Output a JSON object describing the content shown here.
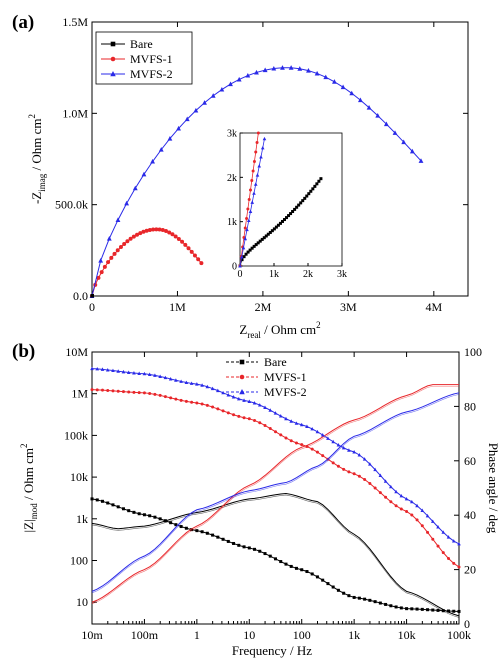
{
  "colors": {
    "bare": "#000000",
    "mvfs1": "#e8262a",
    "mvfs2": "#2a2ae8",
    "axis": "#000000"
  },
  "chart_data": [
    {
      "id": "a",
      "type": "scatter",
      "panel_label": "(a)",
      "xlabel": {
        "main": "Z",
        "sub": "real",
        "rest": " / Ohm cm",
        "sup": "2"
      },
      "ylabel": {
        "main": "-Z",
        "sub": "imag",
        "rest": " / Ohm cm",
        "sup": "2"
      },
      "xlim": [
        0,
        4400000
      ],
      "ylim": [
        0,
        1500000
      ],
      "xticks": [
        {
          "v": 0,
          "label": "0"
        },
        {
          "v": 1000000,
          "label": "1M"
        },
        {
          "v": 2000000,
          "label": "2M"
        },
        {
          "v": 3000000,
          "label": "3M"
        },
        {
          "v": 4000000,
          "label": "4M"
        }
      ],
      "yticks": [
        {
          "v": 0,
          "label": "0.0"
        },
        {
          "v": 500000,
          "label": "500.0k"
        },
        {
          "v": 1000000,
          "label": "1.0M"
        },
        {
          "v": 1500000,
          "label": "1.5M"
        }
      ],
      "legend_position": "top-left",
      "series": [
        {
          "name": "Bare",
          "color_key": "bare",
          "marker": "square",
          "arc": {
            "r": [
              0,
              3000,
              4200
            ],
            "peak_r": 2300,
            "peak_i": 1950,
            "n": 30
          }
        },
        {
          "name": "MVFS-1",
          "color_key": "mvfs1",
          "marker": "circle",
          "arc": {
            "r": [
              0,
              760000,
              1280000
            ],
            "peak_r": 760000,
            "peak_i": 365000,
            "n": 34,
            "end_i": 180000
          }
        },
        {
          "name": "MVFS-2",
          "color_key": "mvfs2",
          "marker": "triangle",
          "arc": {
            "r": [
              0,
              2280000,
              3850000
            ],
            "peak_r": 2280000,
            "peak_i": 1250000,
            "n": 38,
            "end_i": 740000
          }
        }
      ],
      "inset": {
        "xlim": [
          0,
          3000
        ],
        "ylim": [
          0,
          3000
        ],
        "xticks": [
          {
            "v": 0,
            "label": "0"
          },
          {
            "v": 1000,
            "label": "1k"
          },
          {
            "v": 2000,
            "label": "2k"
          },
          {
            "v": 3000,
            "label": "3k"
          }
        ],
        "yticks": [
          {
            "v": 0,
            "label": "0"
          },
          {
            "v": 1000,
            "label": "1k"
          },
          {
            "v": 2000,
            "label": "2k"
          },
          {
            "v": 3000,
            "label": "3k"
          }
        ],
        "series": [
          {
            "name": "Bare",
            "color_key": "bare",
            "marker": "square",
            "x_end": 2380,
            "y_end": 1970
          },
          {
            "name": "MVFS-1",
            "color_key": "mvfs1",
            "marker": "circle",
            "x_end": 540,
            "y_end": 3000
          },
          {
            "name": "MVFS-2",
            "color_key": "mvfs2",
            "marker": "triangle",
            "x_end": 720,
            "y_end": 2870
          }
        ]
      }
    },
    {
      "id": "b",
      "type": "line",
      "panel_label": "(b)",
      "xlabel": {
        "main": "Frequency  / Hz"
      },
      "ylabel": {
        "main": "|Z|",
        "sub": "mod",
        "rest": " / Ohm cm",
        "sup": "2"
      },
      "y2label": {
        "main": "Phase angle / deg"
      },
      "xscale": "log",
      "yscale": "log",
      "xlim": [
        0.01,
        100000
      ],
      "ylim": [
        3,
        10000000
      ],
      "y2lim": [
        0,
        100
      ],
      "xticks": [
        {
          "v": 0.01,
          "label": "10m"
        },
        {
          "v": 0.1,
          "label": "100m"
        },
        {
          "v": 1,
          "label": "1"
        },
        {
          "v": 10,
          "label": "10"
        },
        {
          "v": 100,
          "label": "100"
        },
        {
          "v": 1000,
          "label": "1k"
        },
        {
          "v": 10000,
          "label": "10k"
        },
        {
          "v": 100000,
          "label": "100k"
        }
      ],
      "yticks": [
        {
          "v": 10,
          "label": "10"
        },
        {
          "v": 100,
          "label": "100"
        },
        {
          "v": 1000,
          "label": "1k"
        },
        {
          "v": 10000,
          "label": "10k"
        },
        {
          "v": 100000,
          "label": "100k"
        },
        {
          "v": 1000000,
          "label": "1M"
        },
        {
          "v": 10000000,
          "label": "10M"
        }
      ],
      "y2ticks": [
        {
          "v": 0,
          "label": "0"
        },
        {
          "v": 20,
          "label": "20"
        },
        {
          "v": 40,
          "label": "40"
        },
        {
          "v": 60,
          "label": "60"
        },
        {
          "v": 80,
          "label": "80"
        },
        {
          "v": 100,
          "label": "100"
        }
      ],
      "legend_position": "top-center",
      "series": [
        {
          "name": "Bare",
          "color_key": "bare",
          "marker": "square",
          "modulus": [
            [
              0.01,
              3000
            ],
            [
              0.1,
              1250
            ],
            [
              1,
              520
            ],
            [
              10,
              200
            ],
            [
              100,
              60
            ],
            [
              1000,
              13
            ],
            [
              10000,
              7
            ],
            [
              100000,
              6
            ]
          ],
          "phase": [
            [
              0.01,
              37
            ],
            [
              0.03,
              35
            ],
            [
              0.1,
              36
            ],
            [
              1,
              41
            ],
            [
              10,
              46
            ],
            [
              50,
              48
            ],
            [
              200,
              45
            ],
            [
              1000,
              33
            ],
            [
              10000,
              12
            ],
            [
              100000,
              3
            ]
          ]
        },
        {
          "name": "MVFS-1",
          "color_key": "mvfs1",
          "marker": "circle",
          "modulus": [
            [
              0.01,
              1250000
            ],
            [
              0.1,
              1050000
            ],
            [
              1,
              600000
            ],
            [
              10,
              250000
            ],
            [
              100,
              60000
            ],
            [
              1000,
              12000
            ],
            [
              10000,
              1500
            ],
            [
              100000,
              70
            ]
          ],
          "phase": [
            [
              0.01,
              8
            ],
            [
              0.1,
              20
            ],
            [
              1,
              36
            ],
            [
              10,
              51
            ],
            [
              100,
              65
            ],
            [
              1000,
              75
            ],
            [
              10000,
              84
            ],
            [
              30000,
              88
            ],
            [
              100000,
              88
            ]
          ]
        },
        {
          "name": "MVFS-2",
          "color_key": "mvfs2",
          "marker": "triangle",
          "modulus": [
            [
              0.01,
              4000000
            ],
            [
              0.1,
              3000000
            ],
            [
              1,
              1700000
            ],
            [
              10,
              650000
            ],
            [
              100,
              180000
            ],
            [
              1000,
              40000
            ],
            [
              10000,
              3000
            ],
            [
              100000,
              250
            ]
          ],
          "phase": [
            [
              0.01,
              12
            ],
            [
              0.1,
              25
            ],
            [
              1,
              42
            ],
            [
              10,
              49
            ],
            [
              50,
              52
            ],
            [
              200,
              58
            ],
            [
              1000,
              69
            ],
            [
              10000,
              78
            ],
            [
              100000,
              85
            ]
          ]
        }
      ]
    }
  ]
}
